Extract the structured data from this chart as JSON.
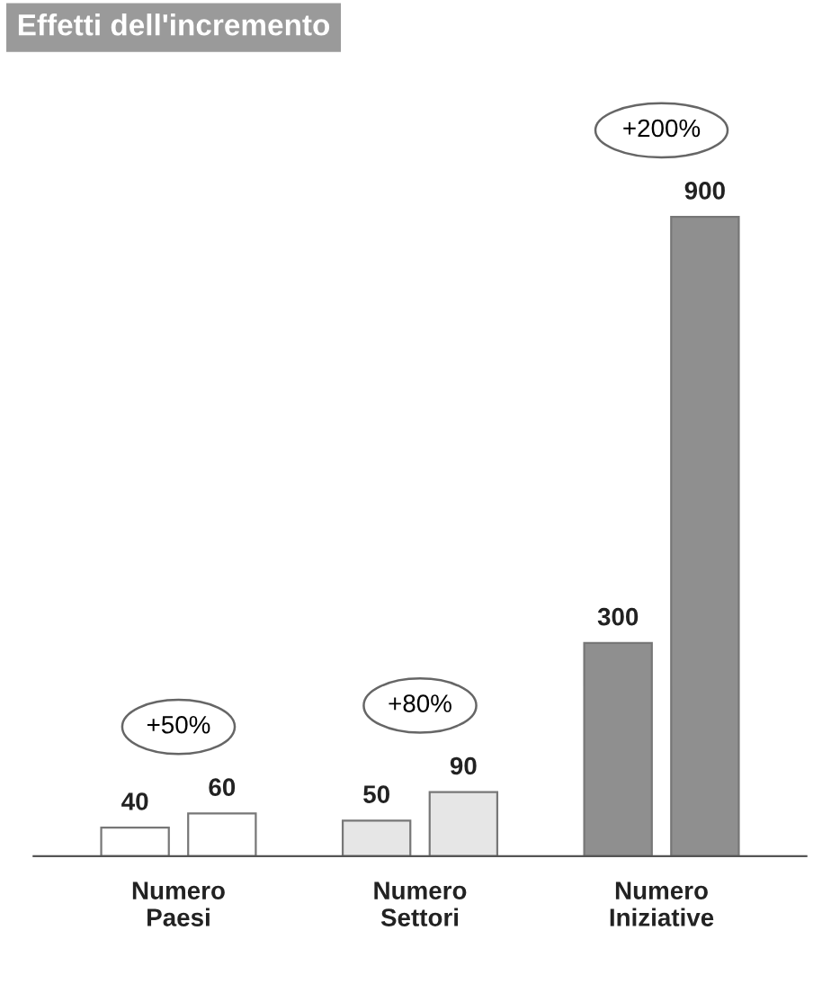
{
  "chart_data": {
    "type": "bar",
    "title": "Effetti dell'incremento",
    "categories": [
      "Numero\nPaesi",
      "Numero\nSettori",
      "Numero\nIniziative"
    ],
    "series": [
      {
        "colors": [
          "#ffffff",
          "#e6e6e6",
          "#8f8f8f"
        ],
        "values": [
          40,
          50,
          300
        ]
      },
      {
        "colors": [
          "#ffffff",
          "#e6e6e6",
          "#8f8f8f"
        ],
        "values": [
          60,
          90,
          900
        ]
      }
    ],
    "data_labels": true,
    "grid": false,
    "legend": false,
    "annotations": [
      "+50%",
      "+80%",
      "+200%"
    ]
  }
}
